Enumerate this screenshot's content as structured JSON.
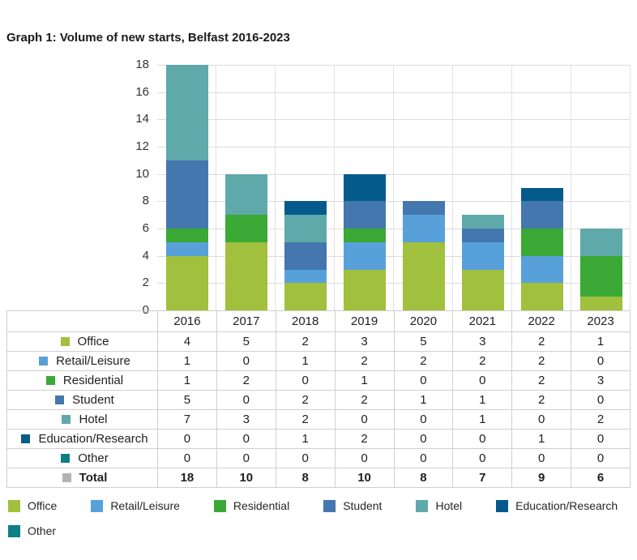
{
  "title": "Graph 1: Volume of new starts, Belfast 2016-2023",
  "colors": {
    "grid": "#dcdcdc",
    "table_border": "#cfcfcf",
    "text": "#1f1f1f"
  },
  "chart_data": {
    "type": "bar",
    "stacked": true,
    "title": "Graph 1: Volume of new starts, Belfast 2016-2023",
    "categories": [
      "2016",
      "2017",
      "2018",
      "2019",
      "2020",
      "2021",
      "2022",
      "2023"
    ],
    "series": [
      {
        "name": "Office",
        "color": "#a1c03d",
        "values": [
          4,
          5,
          2,
          3,
          5,
          3,
          2,
          1
        ]
      },
      {
        "name": "Retail/Leisure",
        "color": "#58a0da",
        "values": [
          1,
          0,
          1,
          2,
          2,
          2,
          2,
          0
        ]
      },
      {
        "name": "Residential",
        "color": "#3aa935",
        "values": [
          1,
          2,
          0,
          1,
          0,
          0,
          2,
          3
        ]
      },
      {
        "name": "Student",
        "color": "#4477ad",
        "values": [
          5,
          0,
          2,
          2,
          1,
          1,
          2,
          0
        ]
      },
      {
        "name": "Hotel",
        "color": "#5fa9aa",
        "values": [
          7,
          3,
          2,
          0,
          0,
          1,
          0,
          2
        ]
      },
      {
        "name": "Education/Research",
        "color": "#055a8c",
        "values": [
          0,
          0,
          1,
          2,
          0,
          0,
          1,
          0
        ]
      },
      {
        "name": "Other",
        "color": "#0e7f87",
        "values": [
          0,
          0,
          0,
          0,
          0,
          0,
          0,
          0
        ]
      }
    ],
    "totals": [
      18,
      10,
      8,
      10,
      8,
      7,
      9,
      6
    ],
    "ylim": [
      0,
      18
    ],
    "yticks": [
      0,
      2,
      4,
      6,
      8,
      10,
      12,
      14,
      16,
      18
    ],
    "grid": true,
    "legend_position": "bottom"
  },
  "table": {
    "total_label": "Total",
    "total_color": "#b3b3b3"
  }
}
